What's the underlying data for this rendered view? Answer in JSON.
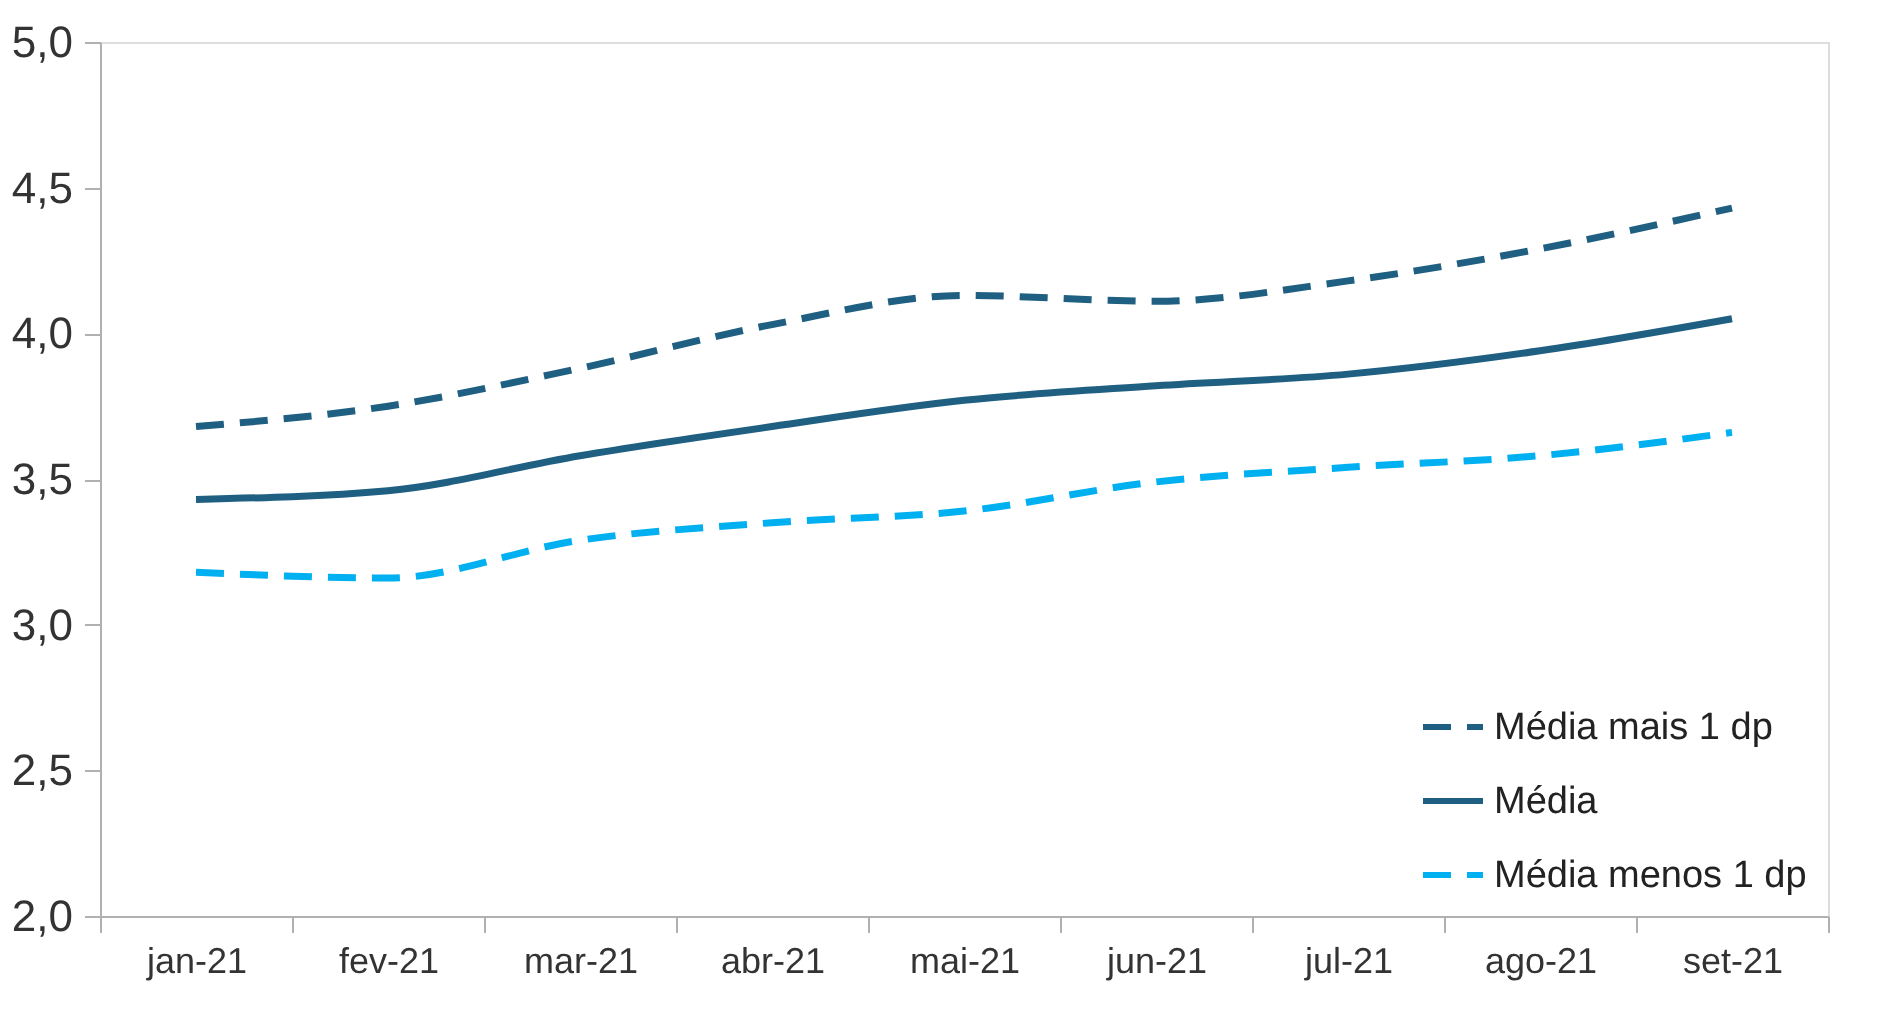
{
  "chart_data": {
    "type": "line",
    "categories": [
      "jan-21",
      "fev-21",
      "mar-21",
      "abr-21",
      "mai-21",
      "jun-21",
      "jul-21",
      "ago-21",
      "set-21"
    ],
    "series": [
      {
        "name": "Média mais 1 dp",
        "color": "#1f5f82",
        "line_style": "dashed",
        "values": [
          3.68,
          3.75,
          3.88,
          4.03,
          4.13,
          4.11,
          4.18,
          4.29,
          4.43
        ]
      },
      {
        "name": "Média",
        "color": "#1f5f82",
        "line_style": "solid",
        "values": [
          3.43,
          3.46,
          3.58,
          3.68,
          3.77,
          3.82,
          3.86,
          3.94,
          4.05
        ]
      },
      {
        "name": "Média menos 1 dp",
        "color": "#00b0f0",
        "line_style": "dashed",
        "values": [
          3.18,
          3.16,
          3.29,
          3.35,
          3.39,
          3.49,
          3.54,
          3.58,
          3.66
        ]
      }
    ],
    "ylim": [
      2.0,
      5.0
    ],
    "yticks": [
      {
        "value": 2.0,
        "label": "2,0"
      },
      {
        "value": 2.5,
        "label": "2,5"
      },
      {
        "value": 3.0,
        "label": "3,0"
      },
      {
        "value": 3.5,
        "label": "3,5"
      },
      {
        "value": 4.0,
        "label": "4,0"
      },
      {
        "value": 4.5,
        "label": "4,5"
      },
      {
        "value": 5.0,
        "label": "5,0"
      }
    ],
    "grid": false,
    "legend": "bottom right",
    "marker": "none"
  }
}
